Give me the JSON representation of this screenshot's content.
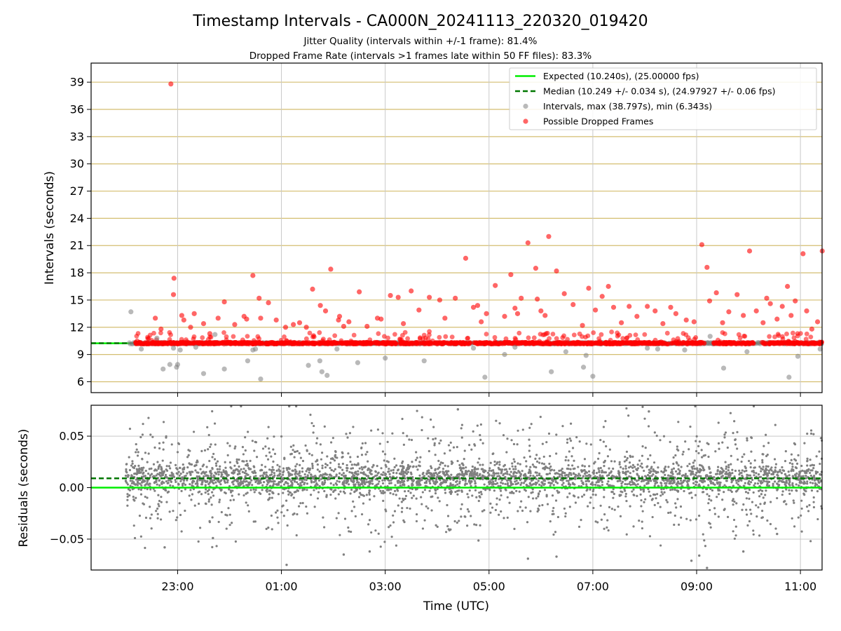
{
  "chart_data": [
    {
      "type": "scatter",
      "title": "Timestamp Intervals - CA000N_20241113_220320_019420",
      "subtitles": [
        "Jitter Quality (intervals within +/-1 frame): 81.4%",
        "Dropped Frame Rate (intervals >1 frames late within 50 FF files): 83.3%"
      ],
      "ylabel": "Intervals (seconds)",
      "xlabel": "",
      "x_unit": "hours since 2024-11-13 00:00 UTC",
      "xlim": [
        21.333,
        35.417
      ],
      "ylim": [
        4.8,
        41.1
      ],
      "yticks": [
        6,
        9,
        12,
        15,
        18,
        21,
        24,
        27,
        30,
        33,
        36,
        39
      ],
      "ytick_labels": [
        "6",
        "9",
        "12",
        "15",
        "18",
        "21",
        "24",
        "27",
        "30",
        "33",
        "36",
        "39"
      ],
      "grid": true,
      "legend_position": "top-right",
      "legend": [
        "Expected (10.240s), (25.00000 fps)",
        "Median (10.249 +/- 0.034 s), (24.97927 +/- 0.06 fps)",
        "Intervals, max (38.797s), min (6.343s)",
        "Possible Dropped Frames"
      ],
      "expected_interval": 10.24,
      "median_interval": 10.249,
      "data_x_range": [
        22.05,
        35.417
      ],
      "series": [
        {
          "name": "Intervals, max (38.797s), min (6.343s)",
          "x": [
            22.1,
            22.3,
            22.6,
            22.72,
            22.85,
            22.92,
            22.98,
            23.0,
            23.05,
            23.35,
            23.9,
            23.5,
            23.72,
            24.35,
            24.45,
            24.5,
            24.6,
            25.52,
            25.74,
            25.78,
            25.88,
            26.07,
            26.47,
            27.0,
            27.75,
            28.7,
            28.92,
            29.3,
            29.5,
            30.2,
            30.48,
            30.82,
            30.87,
            31.0,
            32.05,
            32.25,
            32.77,
            33.26,
            33.52,
            33.97,
            34.78,
            34.95,
            35.38
          ],
          "y": [
            13.7,
            9.6,
            10.8,
            7.4,
            7.9,
            9.7,
            7.6,
            7.9,
            9.5,
            9.8,
            7.4,
            6.9,
            11.2,
            8.3,
            9.5,
            9.6,
            6.3,
            7.8,
            8.3,
            7.1,
            6.7,
            9.6,
            8.1,
            8.6,
            8.3,
            9.7,
            6.5,
            9.0,
            9.8,
            7.1,
            9.3,
            7.6,
            8.9,
            6.6,
            9.7,
            9.6,
            9.5,
            11.0,
            7.5,
            9.3,
            6.5,
            8.8,
            9.6
          ]
        },
        {
          "name": "Possible Dropped Frames",
          "x": [
            22.87,
            22.93,
            22.92,
            23.08,
            22.57,
            22.68,
            23.12,
            23.25,
            23.32,
            23.5,
            23.62,
            23.78,
            23.9,
            24.1,
            24.28,
            24.33,
            24.45,
            24.57,
            24.6,
            24.75,
            24.9,
            25.08,
            25.23,
            25.35,
            25.48,
            25.6,
            25.75,
            25.85,
            25.95,
            26.1,
            26.2,
            26.12,
            26.3,
            26.5,
            26.65,
            26.85,
            26.92,
            27.1,
            27.25,
            27.35,
            27.5,
            27.65,
            27.85,
            28.05,
            28.15,
            28.35,
            28.55,
            28.7,
            28.85,
            28.95,
            28.78,
            29.12,
            29.3,
            29.42,
            29.55,
            29.62,
            29.5,
            29.75,
            29.9,
            29.93,
            30.0,
            30.08,
            30.15,
            30.3,
            30.45,
            30.62,
            30.8,
            30.92,
            31.05,
            31.18,
            31.3,
            31.4,
            31.55,
            31.7,
            31.85,
            32.05,
            32.2,
            32.35,
            32.5,
            32.6,
            32.8,
            32.95,
            33.1,
            33.2,
            33.25,
            33.38,
            33.5,
            33.62,
            33.78,
            33.9,
            34.02,
            34.15,
            34.28,
            34.35,
            34.42,
            34.55,
            34.65,
            34.75,
            34.82,
            34.9,
            35.05,
            35.12,
            35.22,
            35.33,
            35.42
          ],
          "y": [
            38.8,
            17.4,
            15.6,
            13.3,
            13.0,
            11.8,
            12.8,
            12.0,
            13.5,
            12.4,
            11.3,
            13.0,
            14.8,
            12.3,
            13.2,
            12.9,
            17.7,
            15.2,
            13.0,
            14.7,
            12.8,
            12.0,
            12.3,
            12.5,
            12.0,
            16.2,
            14.4,
            13.8,
            18.4,
            12.8,
            12.1,
            13.2,
            12.6,
            15.9,
            12.1,
            13.0,
            12.9,
            15.5,
            15.3,
            12.4,
            16.0,
            13.9,
            15.3,
            15.0,
            13.0,
            15.2,
            19.6,
            14.2,
            12.6,
            13.5,
            14.4,
            16.6,
            13.2,
            17.8,
            13.5,
            15.2,
            14.1,
            21.3,
            18.5,
            15.1,
            13.8,
            13.3,
            22.0,
            18.2,
            15.7,
            14.5,
            12.2,
            16.3,
            13.9,
            15.4,
            16.5,
            14.2,
            12.5,
            14.3,
            13.2,
            14.3,
            13.8,
            12.4,
            14.2,
            13.5,
            12.8,
            12.6,
            21.1,
            18.6,
            14.9,
            15.8,
            12.5,
            13.7,
            15.6,
            13.3,
            20.4,
            13.8,
            12.5,
            15.2,
            14.6,
            12.9,
            14.3,
            16.5,
            13.3,
            14.9,
            20.1,
            13.8,
            11.8,
            12.6,
            20.4
          ]
        }
      ]
    },
    {
      "type": "scatter",
      "title": "",
      "xlabel": "Time (UTC)",
      "ylabel": "Residuals (seconds)",
      "xlim": [
        21.333,
        35.417
      ],
      "ylim": [
        -0.08,
        0.08
      ],
      "yticks": [
        -0.05,
        0.0,
        0.05
      ],
      "ytick_labels": [
        "−0.05",
        "0.00",
        "0.05"
      ],
      "xticks": [
        23,
        25,
        27,
        29,
        31,
        33,
        35
      ],
      "xtick_labels": [
        "23:00",
        "01:00",
        "03:00",
        "05:00",
        "07:00",
        "09:00",
        "11:00"
      ],
      "grid": true,
      "expected_residual": 0.0,
      "median_residual": 0.009,
      "data_x_range": [
        22.0,
        35.417
      ],
      "series": [
        {
          "name": "",
          "x": [
            22.75,
            23.68,
            25.1,
            25.15,
            26.2,
            26.7,
            28.4,
            29.75,
            30.3,
            32.08,
            32.9,
            33.05,
            33.2,
            33.9,
            34.55
          ],
          "y": [
            -0.058,
            -0.049,
            -0.075,
            0.079,
            -0.065,
            -0.062,
            0.076,
            -0.069,
            -0.067,
            0.074,
            -0.071,
            -0.066,
            -0.078,
            -0.062,
            -0.045
          ]
        }
      ]
    }
  ],
  "colors": {
    "expected": "#00ee00",
    "median": "#007700",
    "intervals": "#808080",
    "dropped": "#ff0000",
    "ygrid_top": "#d4be70",
    "grid": "#c8c8c8"
  }
}
